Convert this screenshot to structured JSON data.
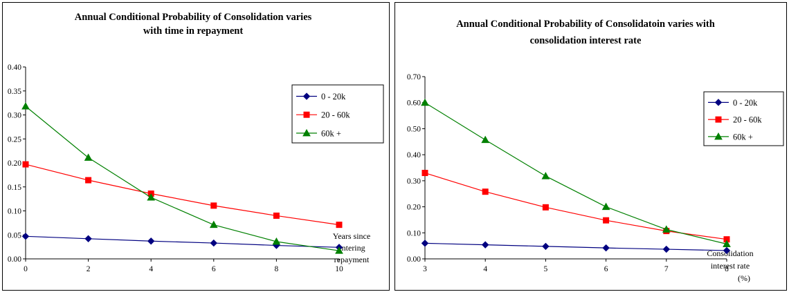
{
  "chart_data": [
    {
      "type": "line",
      "title": [
        "Annual Conditional Probability  of Consolidation varies",
        "with time in repayment"
      ],
      "xlabel": [
        "Years since",
        "entering",
        "repayment"
      ],
      "ylabel": "",
      "x": [
        0,
        2,
        4,
        6,
        8,
        10
      ],
      "xlim": [
        0,
        10
      ],
      "ylim": [
        0,
        0.4
      ],
      "yticks": [
        "0.00",
        "0.05",
        "0.10",
        "0.15",
        "0.20",
        "0.25",
        "0.30",
        "0.35",
        "0.40"
      ],
      "xticks": [
        "0",
        "2",
        "4",
        "6",
        "8",
        "10"
      ],
      "grid": false,
      "legend_position": "right",
      "series": [
        {
          "name": "0 - 20k",
          "color": "#000080",
          "marker": "diamond",
          "values": [
            0.047,
            0.042,
            0.037,
            0.033,
            0.028,
            0.024
          ]
        },
        {
          "name": "20 - 60k",
          "color": "#ff0000",
          "marker": "square",
          "values": [
            0.197,
            0.164,
            0.136,
            0.111,
            0.09,
            0.071
          ]
        },
        {
          "name": "60k +",
          "color": "#008000",
          "marker": "triangle",
          "values": [
            0.318,
            0.211,
            0.128,
            0.071,
            0.036,
            0.017
          ]
        }
      ]
    },
    {
      "type": "line",
      "title": [
        "Annual Conditional Probability of Consolidatoin varies with",
        "consolidation interest rate"
      ],
      "xlabel": [
        "Consolidation",
        "interest rate",
        "(%)"
      ],
      "ylabel": "",
      "x": [
        3,
        4,
        5,
        6,
        7,
        8
      ],
      "xlim": [
        3,
        8
      ],
      "ylim": [
        0,
        0.7
      ],
      "yticks": [
        "0.00",
        "0.10",
        "0.20",
        "0.30",
        "0.40",
        "0.50",
        "0.60",
        "0.70"
      ],
      "xticks": [
        "3",
        "4",
        "5",
        "6",
        "7",
        "8"
      ],
      "grid": false,
      "legend_position": "right",
      "series": [
        {
          "name": "0 - 20k",
          "color": "#000080",
          "marker": "diamond",
          "values": [
            0.06,
            0.054,
            0.048,
            0.042,
            0.037,
            0.032
          ]
        },
        {
          "name": "20 - 60k",
          "color": "#ff0000",
          "marker": "square",
          "values": [
            0.33,
            0.258,
            0.198,
            0.148,
            0.107,
            0.075
          ]
        },
        {
          "name": "60k +",
          "color": "#008000",
          "marker": "triangle",
          "values": [
            0.6,
            0.457,
            0.318,
            0.2,
            0.113,
            0.057
          ]
        }
      ]
    }
  ]
}
